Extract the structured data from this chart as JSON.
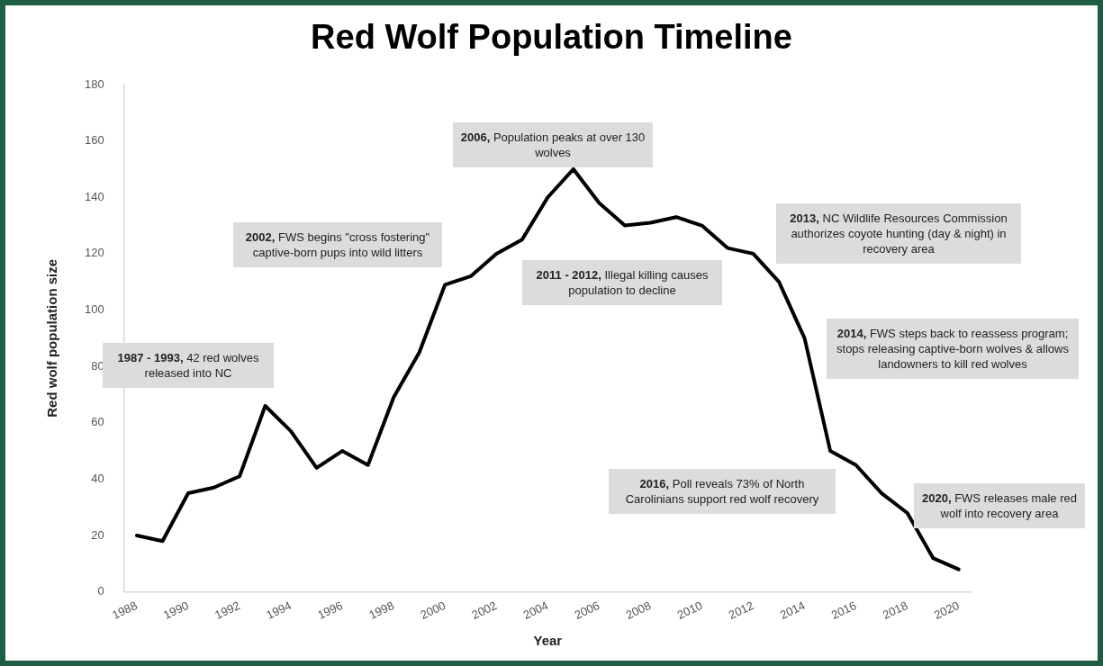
{
  "chart_data": {
    "type": "line",
    "title": "Red Wolf Population Timeline",
    "xlabel": "Year",
    "ylabel": "Red wolf population size",
    "categories": [
      "1988",
      null,
      "1990",
      null,
      "1992",
      null,
      "1994",
      null,
      "1996",
      null,
      "1998",
      null,
      "2000",
      null,
      "2002",
      null,
      "2004",
      null,
      "2006",
      null,
      "2008",
      null,
      "2010",
      null,
      "2012",
      null,
      "2014",
      null,
      "2016",
      null,
      "2018",
      null,
      "2020"
    ],
    "series": [
      {
        "color": "#000000",
        "values": [
          20,
          18,
          35,
          37,
          41,
          66,
          57,
          44,
          50,
          45,
          69,
          85,
          109,
          112,
          120,
          125,
          140,
          150,
          138,
          130,
          131,
          133,
          130,
          122,
          120,
          110,
          90,
          50,
          45,
          35,
          28,
          12,
          8
        ]
      }
    ],
    "ylim": [
      0,
      180
    ],
    "yticks": [
      0,
      20,
      40,
      60,
      80,
      100,
      120,
      140,
      160,
      180
    ],
    "grid": false,
    "legend": false,
    "marker": "none",
    "line_style": "solid",
    "annotations": [
      "1987 - 1993, 42 red wolves released into NC",
      "2002, FWS begins \"cross fostering\" captive-born pups into wild litters",
      "2006,  Population peaks at over 130 wolves",
      "2011 - 2012, Illegal killing causes population to decline",
      "2013,  NC Wildlife Resources Commission authorizes coyote hunting (day & night) in recovery area",
      "2014,  FWS steps back to reassess program; stops releasing captive-born wolves & allows landowners to kill red wolves",
      "2016, Poll reveals 73% of North Carolinians support red wolf recovery",
      "2020, FWS releases male red wolf into recovery area"
    ]
  }
}
